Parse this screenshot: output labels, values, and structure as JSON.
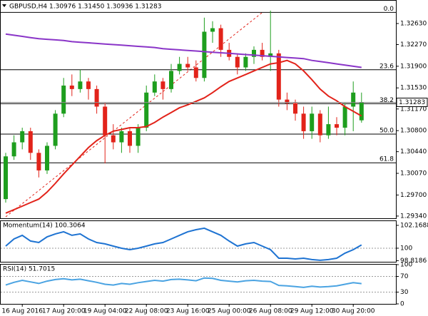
{
  "chart_data": [
    {
      "type": "candlestick",
      "title": "GBPUSD,H4  1.30976 1.31450 1.30936 1.31283",
      "categories": [
        null,
        null,
        "16 Aug 2016",
        null,
        null,
        null,
        null,
        "17 Aug 20:00",
        null,
        null,
        null,
        null,
        "19 Aug 04:00",
        null,
        null,
        null,
        null,
        "22 Aug 08:00",
        null,
        null,
        null,
        null,
        "23 Aug 16:00",
        null,
        null,
        null,
        null,
        "25 Aug 00:00",
        null,
        null,
        null,
        null,
        "26 Aug 08:00",
        null,
        null,
        null,
        null,
        "29 Aug 12:00",
        null,
        null,
        null,
        null,
        "30 Aug 20:00",
        null
      ],
      "open": [
        1.2963,
        1.3036,
        1.306,
        1.3079,
        1.3042,
        1.3012,
        1.3054,
        1.3109,
        1.3157,
        1.3151,
        1.3164,
        1.3151,
        1.3121,
        1.3072,
        1.306,
        1.3079,
        1.3054,
        1.3085,
        1.3145,
        1.3164,
        1.3151,
        1.3182,
        1.3194,
        1.3188,
        1.317,
        1.3249,
        1.3255,
        1.3218,
        1.3206,
        1.3188,
        1.3206,
        1.3218,
        1.3206,
        1.3212,
        1.3133,
        1.3127,
        1.3109,
        1.3079,
        1.3109,
        1.3072,
        1.3091,
        1.3085,
        1.3121,
        1.30976
      ],
      "high": [
        1.3042,
        1.3072,
        1.3085,
        1.3085,
        1.3048,
        1.306,
        1.3115,
        1.317,
        1.3176,
        1.3184,
        1.317,
        1.3157,
        1.3127,
        1.3091,
        1.3085,
        1.3085,
        1.3091,
        1.3157,
        1.3176,
        1.317,
        1.3194,
        1.3206,
        1.3206,
        1.32,
        1.3273,
        1.3267,
        1.3261,
        1.323,
        1.3212,
        1.3212,
        1.3224,
        1.323,
        1.3285,
        1.3218,
        1.3145,
        1.3133,
        1.3121,
        1.3121,
        1.3115,
        1.3121,
        1.3103,
        1.3127,
        1.3164,
        1.3145
      ],
      "low": [
        1.2957,
        1.303,
        1.3048,
        1.303,
        1.3,
        1.3006,
        1.3048,
        1.3103,
        1.3139,
        1.3145,
        1.3133,
        1.3109,
        1.3024,
        1.3048,
        1.3042,
        1.3042,
        1.3042,
        1.3079,
        1.3139,
        1.3133,
        1.3145,
        1.3176,
        1.3182,
        1.3164,
        1.3164,
        1.323,
        1.3206,
        1.32,
        1.3176,
        1.3182,
        1.3194,
        1.32,
        1.3182,
        1.3121,
        1.3115,
        1.3097,
        1.3066,
        1.3066,
        1.306,
        1.3066,
        1.3072,
        1.3072,
        1.3079,
        1.30936
      ],
      "close": [
        1.3036,
        1.306,
        1.3079,
        1.3042,
        1.3012,
        1.3054,
        1.3109,
        1.3157,
        1.3151,
        1.3164,
        1.3151,
        1.3121,
        1.3072,
        1.306,
        1.3079,
        1.3054,
        1.3085,
        1.3145,
        1.3164,
        1.3151,
        1.3182,
        1.3194,
        1.3188,
        1.317,
        1.3249,
        1.3255,
        1.3218,
        1.3206,
        1.3188,
        1.3206,
        1.3218,
        1.3206,
        1.3212,
        1.3133,
        1.3127,
        1.3109,
        1.3079,
        1.3109,
        1.3072,
        1.3091,
        1.3085,
        1.3121,
        1.3145,
        1.31283
      ],
      "up_color": "#1e9e1e",
      "down_color": "#e2231a",
      "series": [
        {
          "color": "#e2231a",
          "values": [
            1.2939,
            1.2945,
            1.2951,
            1.2957,
            1.2963,
            1.2975,
            1.299,
            1.3006,
            1.3021,
            1.3036,
            1.3051,
            1.3063,
            1.3072,
            1.3079,
            1.3082,
            1.3085,
            1.3085,
            1.3087,
            1.3094,
            1.3103,
            1.3111,
            1.3119,
            1.3124,
            1.313,
            1.3136,
            1.3145,
            1.3155,
            1.3164,
            1.317,
            1.3176,
            1.3182,
            1.3188,
            1.3194,
            1.3196,
            1.32,
            1.3194,
            1.3182,
            1.3167,
            1.3151,
            1.3139,
            1.3131,
            1.3121,
            1.3113,
            1.3105
          ]
        },
        {
          "color": "#8a35c8",
          "values": [
            1.3245,
            1.3243,
            1.3241,
            1.3239,
            1.3237,
            1.3236,
            1.3235,
            1.3234,
            1.3232,
            1.3231,
            1.323,
            1.3229,
            1.3228,
            1.3227,
            1.3226,
            1.3225,
            1.3224,
            1.3223,
            1.3222,
            1.322,
            1.3219,
            1.3218,
            1.3217,
            1.3216,
            1.3215,
            1.3214,
            1.3213,
            1.3212,
            1.3211,
            1.321,
            1.3209,
            1.3208,
            1.3207,
            1.3206,
            1.3205,
            1.3204,
            1.3203,
            1.32,
            1.3198,
            1.3196,
            1.3194,
            1.3192,
            1.319,
            1.3188
          ]
        }
      ],
      "levels": [
        {
          "value": 1.3282,
          "label": "0.0"
        },
        {
          "value": 1.3184,
          "label": "23.6"
        },
        {
          "value": 1.3126,
          "label": "38.2"
        },
        {
          "value": 1.3074,
          "label": "50.0"
        },
        {
          "value": 1.3025,
          "label": "61.8"
        }
      ],
      "current_price": {
        "value": 1.31283,
        "label": "1.31283"
      },
      "ylim": [
        1.2929,
        1.3291
      ],
      "yticks": [
        {
          "value": 1.3263,
          "label": "1.32630"
        },
        {
          "value": 1.3227,
          "label": "1.32270"
        },
        {
          "value": 1.319,
          "label": "1.31900"
        },
        {
          "value": 1.3153,
          "label": "1.31530"
        },
        {
          "value": 1.3117,
          "label": "1.31170"
        },
        {
          "value": 1.308,
          "label": "1.30800"
        },
        {
          "value": 1.3044,
          "label": "1.30440"
        },
        {
          "value": 1.3007,
          "label": "1.30070"
        },
        {
          "value": 1.297,
          "label": "1.29700"
        },
        {
          "value": 1.2934,
          "label": "1.29340"
        }
      ]
    },
    {
      "type": "line",
      "title": "Momentum(14) 100.3064",
      "series": [
        {
          "color": "#1e73d2",
          "values": [
            100.2,
            100.88,
            101.22,
            100.68,
            100.54,
            101.08,
            101.36,
            101.56,
            101.22,
            101.36,
            100.88,
            100.54,
            100.41,
            100.2,
            100,
            99.86,
            100,
            100.2,
            100.41,
            100.54,
            100.88,
            101.22,
            101.56,
            101.76,
            101.9,
            101.56,
            101.22,
            100.68,
            100.2,
            100.41,
            100.54,
            100.2,
            99.86,
            99.05,
            99.05,
            98.98,
            99.05,
            98.92,
            98.85,
            98.92,
            99.05,
            99.53,
            99.86,
            100.3064
          ]
        }
      ],
      "reference": [
        100
      ],
      "ylim": [
        98.71,
        102.57
      ],
      "yticks": [
        102.1688,
        100,
        98.8186
      ]
    },
    {
      "type": "line",
      "title": "RSI(14) 51.7015",
      "series": [
        {
          "color": "#4aa3e2",
          "values": [
            48,
            55,
            60,
            56,
            52,
            58,
            62,
            64,
            61,
            63,
            59,
            55,
            50,
            48,
            52,
            50,
            54,
            57,
            60,
            58,
            62,
            63,
            61,
            59,
            66,
            65,
            60,
            58,
            56,
            59,
            60,
            58,
            57,
            47,
            46,
            44,
            42,
            45,
            43,
            44,
            46,
            50,
            54,
            51.7015
          ]
        }
      ],
      "reference": [
        70,
        30
      ],
      "ylim": [
        0,
        100
      ],
      "yticks": [
        100,
        70,
        30,
        0
      ]
    }
  ]
}
